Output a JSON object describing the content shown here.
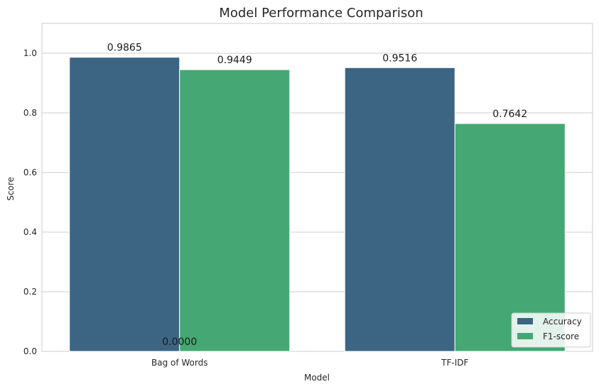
{
  "chart_data": {
    "type": "bar",
    "title": "Model Performance Comparison",
    "xlabel": "Model",
    "ylabel": "Score",
    "categories": [
      "Bag of Words",
      "TF-IDF"
    ],
    "series": [
      {
        "name": "Accuracy",
        "values": [
          0.9865,
          0.9516
        ],
        "color": "#3b6583"
      },
      {
        "name": "F1-score",
        "values": [
          0.9449,
          0.7642
        ],
        "color": "#45a773"
      }
    ],
    "bar_labels": [
      "0.9865",
      "0.9449",
      "0.9516",
      "0.7642"
    ],
    "extra_annotation": "0.0000",
    "ylim": [
      0,
      1.1
    ],
    "yticks": [
      "0.0",
      "0.2",
      "0.4",
      "0.6",
      "0.8",
      "1.0"
    ],
    "grid": true,
    "legend_position": "bottom-right"
  }
}
